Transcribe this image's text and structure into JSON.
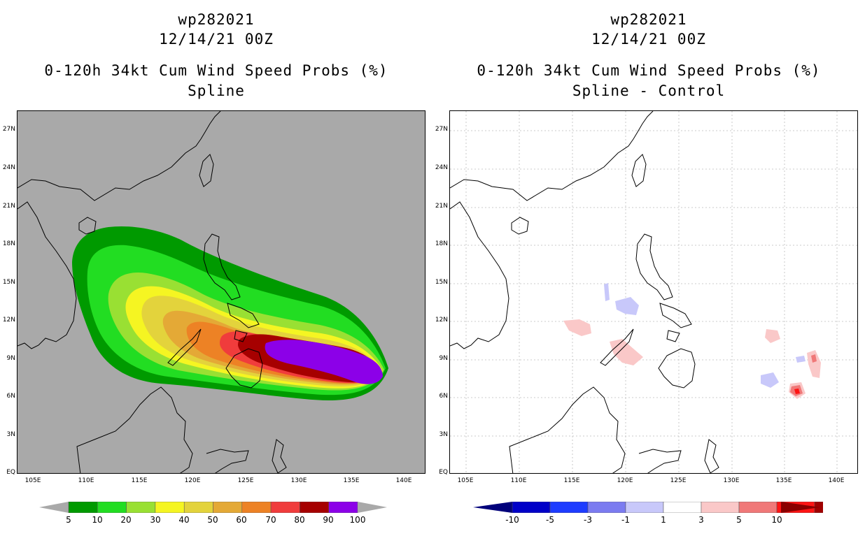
{
  "left": {
    "title_line1": "wp282021",
    "title_line2": "12/14/21 00Z",
    "title_line3": "0-120h 34kt Cum Wind Speed Probs (%)",
    "title_line4": "Spline",
    "colorbar_colors": [
      "#009a00",
      "#22dd22",
      "#99e033",
      "#f5f522",
      "#e3d33c",
      "#e4a936",
      "#ed8225",
      "#f03c3c",
      "#a60000",
      "#8c00e8"
    ],
    "colorbar_labels": [
      "5",
      "10",
      "20",
      "30",
      "40",
      "50",
      "60",
      "70",
      "80",
      "90",
      "100"
    ]
  },
  "right": {
    "title_line1": "wp282021",
    "title_line2": "12/14/21 00Z",
    "title_line3": "0-120h 34kt Cum Wind Speed Probs (%)",
    "title_line4": "Spline - Control",
    "colorbar_colors": [
      "#0000c8",
      "#1e3cff",
      "#7b7bf0",
      "#c8c8fa",
      "#ffffff",
      "#fac8c8",
      "#f07878",
      "#ff1414",
      "#a00000"
    ],
    "colorbar_labels": [
      "-10",
      "-5",
      "-3",
      "-1",
      "1",
      "3",
      "5",
      "10"
    ]
  },
  "axes": {
    "lat_labels": [
      "27N",
      "24N",
      "21N",
      "18N",
      "15N",
      "12N",
      "9N",
      "6N",
      "3N",
      "EQ"
    ],
    "lon_labels": [
      "105E",
      "110E",
      "115E",
      "120E",
      "125E",
      "130E",
      "135E",
      "140E"
    ]
  },
  "map": {
    "land_fill_left": "#a9a9a9",
    "land_fill_right": "#ffffff",
    "coastline_color": "#000000",
    "grid_color": "#bbbbbb"
  }
}
